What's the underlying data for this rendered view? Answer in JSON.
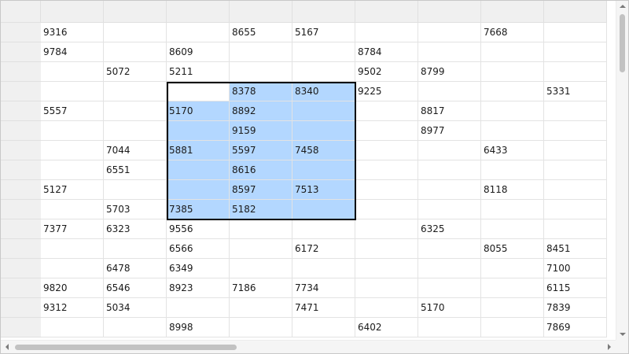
{
  "grid": {
    "column_headers": [
      "",
      "",
      "",
      "",
      "",
      "",
      "",
      "",
      "",
      ""
    ],
    "rows": [
      [
        "9316",
        "",
        "",
        "8655",
        "5167",
        "",
        "",
        "7668",
        ""
      ],
      [
        "9784",
        "",
        "8609",
        "",
        "",
        "8784",
        "",
        "",
        ""
      ],
      [
        "",
        "5072",
        "5211",
        "",
        "",
        "9502",
        "8799",
        "",
        ""
      ],
      [
        "",
        "",
        "",
        "8378",
        "8340",
        "9225",
        "",
        "",
        "5331"
      ],
      [
        "5557",
        "",
        "5170",
        "8892",
        "",
        "",
        "8817",
        "",
        ""
      ],
      [
        "",
        "",
        "",
        "9159",
        "",
        "",
        "8977",
        "",
        ""
      ],
      [
        "",
        "7044",
        "5881",
        "5597",
        "7458",
        "",
        "",
        "6433",
        ""
      ],
      [
        "",
        "6551",
        "",
        "8616",
        "",
        "",
        "",
        "",
        ""
      ],
      [
        "5127",
        "",
        "",
        "8597",
        "7513",
        "",
        "",
        "8118",
        ""
      ],
      [
        "",
        "5703",
        "7385",
        "5182",
        "",
        "",
        "",
        "",
        ""
      ],
      [
        "7377",
        "6323",
        "9556",
        "",
        "",
        "",
        "6325",
        "",
        ""
      ],
      [
        "",
        "",
        "6566",
        "",
        "6172",
        "",
        "",
        "8055",
        "8451"
      ],
      [
        "",
        "6478",
        "6349",
        "",
        "",
        "",
        "",
        "",
        "7100"
      ],
      [
        "9820",
        "6546",
        "8923",
        "7186",
        "7734",
        "",
        "",
        "",
        "6115"
      ],
      [
        "9312",
        "5034",
        "",
        "",
        "7471",
        "",
        "5170",
        "",
        "7839"
      ],
      [
        "",
        "",
        "8998",
        "",
        "",
        "6402",
        "",
        "",
        "7869"
      ]
    ],
    "selection": {
      "start_row": 3,
      "end_row": 9,
      "start_col": 2,
      "end_col": 4,
      "active_row": 3,
      "active_col": 2
    },
    "colors": {
      "selection": "#b3d7ff",
      "header": "#f0f0f0",
      "outline": "#000000"
    }
  },
  "scrollbars": {
    "vertical": {
      "up_icon": "arrow-up-icon",
      "down_icon": "arrow-down-icon"
    },
    "horizontal": {
      "left_icon": "arrow-left-icon",
      "right_icon": "arrow-right-icon"
    }
  }
}
